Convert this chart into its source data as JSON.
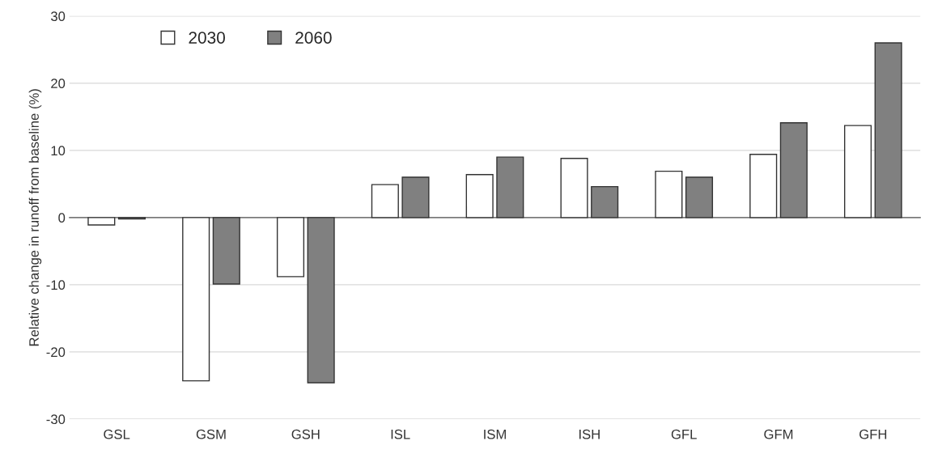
{
  "chart_data": {
    "type": "bar",
    "ylabel": "Relative change in runoff from baseline (%)",
    "categories": [
      "GSL",
      "GSM",
      "GSH",
      "ISL",
      "ISM",
      "ISH",
      "GFL",
      "GFM",
      "GFH"
    ],
    "series": [
      {
        "name": "2030",
        "color": "#ffffff",
        "values": [
          -1.1,
          -24.3,
          -8.8,
          4.9,
          6.4,
          8.8,
          6.9,
          9.4,
          13.7
        ]
      },
      {
        "name": "2060",
        "color": "#808080",
        "values": [
          -0.2,
          -9.9,
          -24.6,
          6.0,
          9.0,
          4.6,
          6.0,
          14.1,
          26.0
        ]
      }
    ],
    "ylim": [
      -30,
      30
    ],
    "yticks": [
      -30,
      -20,
      -10,
      0,
      10,
      20,
      30
    ],
    "grid": "y",
    "legend": "top left"
  }
}
